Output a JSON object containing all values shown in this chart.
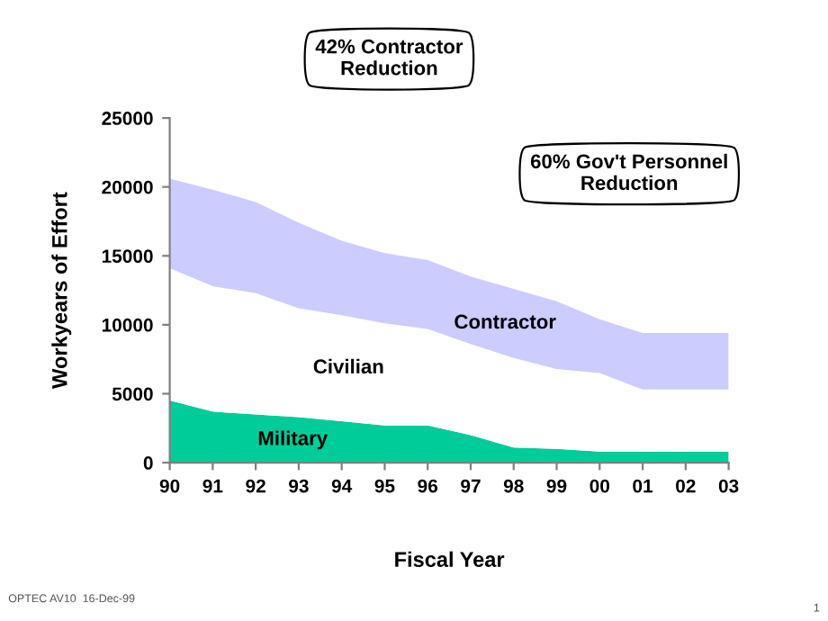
{
  "chart_data": {
    "type": "area",
    "stacked": true,
    "xlabel": "Fiscal Year",
    "ylabel": "Workyears of Effort",
    "categories": [
      "90",
      "91",
      "92",
      "93",
      "94",
      "95",
      "96",
      "97",
      "98",
      "99",
      "00",
      "01",
      "02",
      "03"
    ],
    "series": [
      {
        "name": "Military",
        "color": "#00cc99",
        "values": [
          4500,
          3700,
          3500,
          3300,
          3000,
          2700,
          2700,
          2000,
          1100,
          1000,
          800,
          800,
          800,
          800
        ]
      },
      {
        "name": "Civilian",
        "color": "#ffffff",
        "values": [
          9600,
          9100,
          8800,
          7900,
          7700,
          7400,
          7000,
          6600,
          6500,
          5800,
          5700,
          4500,
          4500,
          4500
        ]
      },
      {
        "name": "Contractor",
        "color": "#ccccff",
        "values": [
          6500,
          7000,
          6600,
          6200,
          5400,
          5100,
          5000,
          4900,
          5000,
          4900,
          3900,
          4100,
          4100,
          4100
        ]
      }
    ],
    "ylim": [
      0,
      25000
    ],
    "yticks": [
      0,
      5000,
      10000,
      15000,
      20000,
      25000
    ],
    "grid": false,
    "legend": false,
    "annotations": [
      "42% Contractor\nReduction",
      "60% Gov't Personnel\nReduction",
      "OPTEC AV10  16-Dec-99",
      "1"
    ]
  }
}
